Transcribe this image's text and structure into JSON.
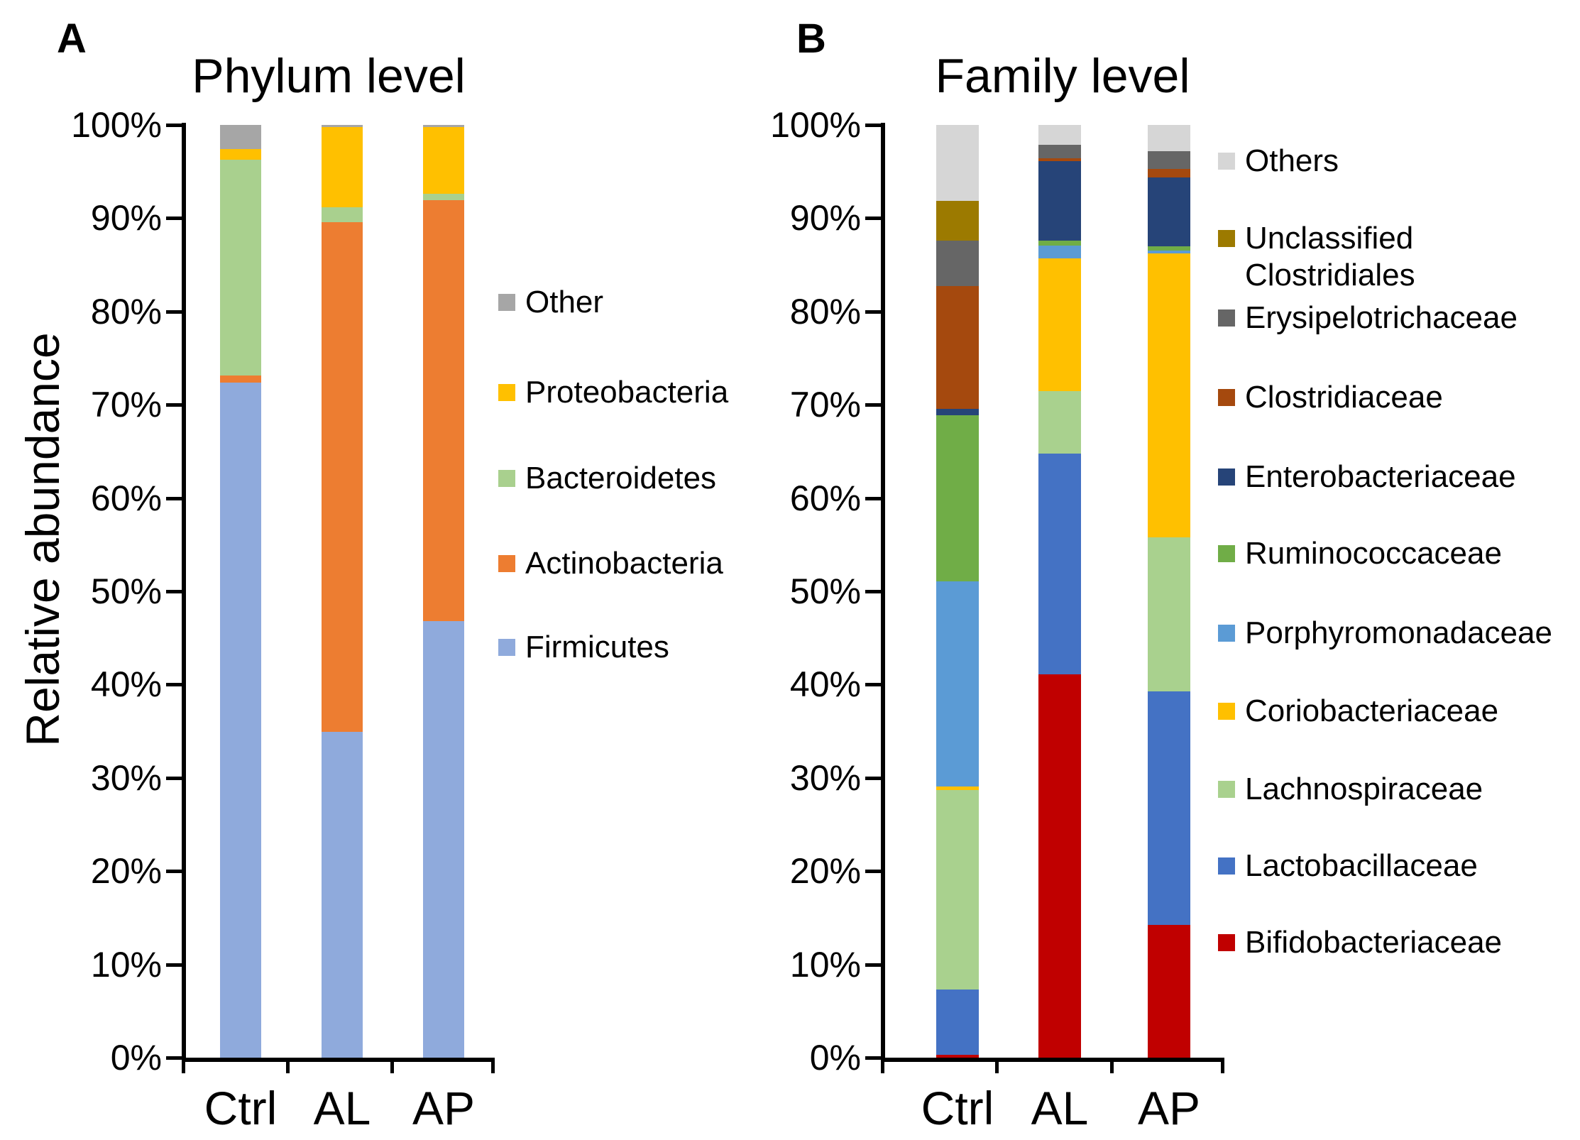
{
  "chart_data": [
    {
      "type": "bar",
      "stacked": true,
      "panel_label": "A",
      "title": "Phylum level",
      "ylabel": "Relative abundance",
      "categories": [
        "Ctrl",
        "AL",
        "AP"
      ],
      "y_ticks": [
        "100%",
        "90%",
        "80%",
        "70%",
        "60%",
        "50%",
        "40%",
        "30%",
        "20%",
        "10%",
        "0%"
      ],
      "ylim": [
        0,
        100
      ],
      "grid": false,
      "legend_position": "right",
      "series": [
        {
          "name": "Firmicutes",
          "color": "#8FAADC",
          "values": [
            72.4,
            34.9,
            46.8
          ]
        },
        {
          "name": "Actinobacteria",
          "color": "#ED7D31",
          "values": [
            0.7,
            54.7,
            45.1
          ]
        },
        {
          "name": "Bacteroidetes",
          "color": "#A9D08E",
          "values": [
            23.2,
            1.6,
            0.7
          ]
        },
        {
          "name": "Proteobacteria",
          "color": "#FFC000",
          "values": [
            1.1,
            8.6,
            7.2
          ]
        },
        {
          "name": "Other",
          "color": "#A6A6A6",
          "values": [
            2.6,
            0.2,
            0.2
          ]
        }
      ]
    },
    {
      "type": "bar",
      "stacked": true,
      "panel_label": "B",
      "title": "Family level",
      "ylabel": "",
      "categories": [
        "Ctrl",
        "AL",
        "AP"
      ],
      "y_ticks": [
        "100%",
        "90%",
        "80%",
        "70%",
        "60%",
        "50%",
        "40%",
        "30%",
        "20%",
        "10%",
        "0%"
      ],
      "ylim": [
        0,
        100
      ],
      "grid": false,
      "legend_position": "right",
      "series": [
        {
          "name": "Bifidobacteriaceae",
          "color": "#C00000",
          "values": [
            0.3,
            41.1,
            14.2
          ]
        },
        {
          "name": "Lactobacillaceae",
          "color": "#4472C4",
          "values": [
            7.0,
            23.7,
            25.1
          ]
        },
        {
          "name": "Lachnospiraceae",
          "color": "#A9D18E",
          "values": [
            21.4,
            6.7,
            16.5
          ]
        },
        {
          "name": "Coriobacteriaceae",
          "color": "#FFC000",
          "values": [
            0.4,
            14.2,
            30.4
          ]
        },
        {
          "name": "Porphyromonadaceae",
          "color": "#5B9BD5",
          "values": [
            22.0,
            1.4,
            0.3
          ]
        },
        {
          "name": "Ruminococcaceae",
          "color": "#70AD47",
          "values": [
            17.8,
            0.5,
            0.5
          ]
        },
        {
          "name": "Enterobacteriaceae",
          "color": "#264478",
          "values": [
            0.7,
            8.5,
            7.4
          ]
        },
        {
          "name": "Clostridiaceae",
          "color": "#A5490E",
          "values": [
            13.1,
            0.3,
            0.9
          ]
        },
        {
          "name": "Erysipelotrichaceae",
          "color": "#666666",
          "values": [
            4.9,
            1.5,
            1.9
          ]
        },
        {
          "name": "Unclassified Clostridiales",
          "color": "#9C7A00",
          "values": [
            4.3,
            0,
            0
          ]
        },
        {
          "name": "Others",
          "color": "#D6D6D6",
          "values": [
            8.1,
            2.1,
            2.8
          ]
        }
      ]
    }
  ]
}
